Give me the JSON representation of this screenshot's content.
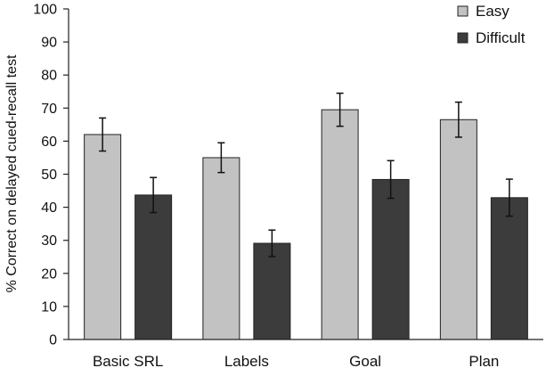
{
  "chart_data": {
    "type": "bar",
    "title": "",
    "xlabel": "",
    "ylabel": "% Correct on delayed cued-recall test",
    "ylim": [
      0,
      100
    ],
    "yticks": [
      0,
      10,
      20,
      30,
      40,
      50,
      60,
      70,
      80,
      90,
      100
    ],
    "categories": [
      "Basic SRL",
      "Labels",
      "Goal",
      "Plan"
    ],
    "series": [
      {
        "name": "Easy",
        "color": "#c2c2c2",
        "values": [
          62,
          55,
          69.5,
          66.5
        ],
        "errors": [
          5,
          4.5,
          5,
          5.3
        ]
      },
      {
        "name": "Difficult",
        "color": "#3c3c3c",
        "values": [
          43.7,
          29.1,
          48.4,
          42.9
        ],
        "errors": [
          5.3,
          4,
          5.7,
          5.6
        ]
      }
    ],
    "legend_position": "top-right",
    "grid": false
  }
}
